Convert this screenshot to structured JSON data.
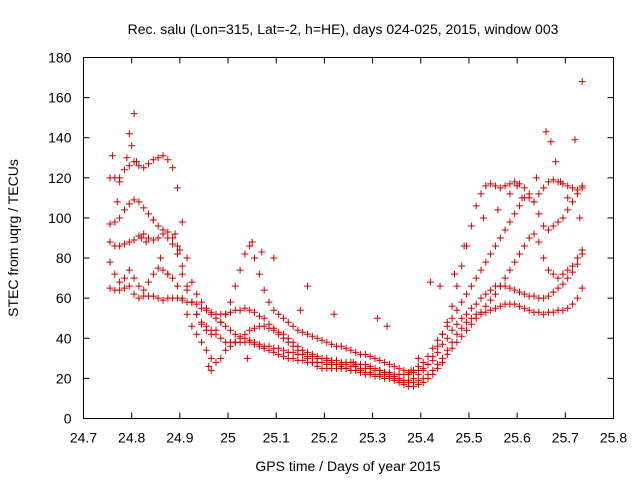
{
  "chart_data": {
    "type": "scatter",
    "title": "Rec. salu (Lon=315, Lat=-2, h=HE), days 024-025, 2015, window 003",
    "xlabel": "GPS time / Days of year 2015",
    "ylabel": "STEC from uqrg / TECUs",
    "xlim": [
      24.7,
      25.8
    ],
    "ylim": [
      0,
      180
    ],
    "xticks": [
      "24.7",
      "24.8",
      "24.9",
      "25",
      "25.1",
      "25.2",
      "25.3",
      "25.4",
      "25.5",
      "25.6",
      "25.7",
      "25.8"
    ],
    "yticks": [
      "0",
      "20",
      "40",
      "60",
      "80",
      "100",
      "120",
      "140",
      "160",
      "180"
    ],
    "grid": false,
    "legend": "none",
    "marker": "+",
    "marker_color": "#cc0000",
    "series": [
      {
        "x": [
          24.755,
          24.765,
          24.775,
          24.785,
          24.795,
          24.805,
          24.815,
          24.825,
          24.835,
          24.845,
          24.855,
          24.865,
          24.875,
          24.885,
          24.895,
          24.905,
          24.915,
          24.925,
          24.935,
          24.945,
          24.955,
          24.965,
          24.975,
          24.985,
          24.995,
          25.005,
          25.015,
          25.025,
          25.035,
          25.045,
          25.055,
          25.065,
          25.075,
          25.085,
          25.095,
          25.105,
          25.115,
          25.125,
          25.135,
          25.145,
          25.155,
          25.165,
          25.175,
          25.185,
          25.195,
          25.205,
          25.215,
          25.225,
          25.235,
          25.245,
          25.255,
          25.265,
          25.275,
          25.285,
          25.295,
          25.305,
          25.315,
          25.325,
          25.335,
          25.345,
          25.355,
          25.365,
          25.375,
          25.385,
          25.395,
          25.405,
          25.415,
          25.425,
          25.435,
          25.445,
          25.455,
          25.465,
          25.475,
          25.485,
          25.495,
          25.505,
          25.515,
          25.525,
          25.535,
          25.545,
          25.555,
          25.565,
          25.575,
          25.585,
          25.595,
          25.605,
          25.615,
          25.625,
          25.635,
          25.645,
          25.655,
          25.665,
          25.675,
          25.685,
          25.695,
          25.705,
          25.715,
          25.725,
          25.735
        ],
        "y": [
          65,
          64,
          64,
          65,
          66,
          62,
          60,
          61,
          61,
          61,
          60,
          59,
          60,
          60,
          60,
          59,
          58,
          58,
          57,
          55,
          54,
          53,
          52,
          52,
          52,
          53,
          54,
          54,
          55,
          54,
          53,
          51,
          50,
          47,
          45,
          42,
          40,
          38,
          36,
          34,
          32,
          30,
          28,
          26,
          25,
          25,
          25,
          25,
          25,
          25,
          24,
          24,
          24,
          23,
          23,
          22,
          22,
          22,
          21,
          20,
          19,
          18,
          18,
          18,
          19,
          20,
          22,
          24,
          27,
          30,
          34,
          38,
          42,
          45,
          48,
          50,
          52,
          52,
          53,
          54,
          55,
          56,
          57,
          57,
          57,
          56,
          55,
          54,
          53,
          53,
          52,
          53,
          53,
          54,
          54,
          55,
          57,
          60,
          65
        ]
      },
      {
        "x": [
          24.755,
          24.765,
          24.775,
          24.785,
          24.795,
          24.805,
          24.815,
          24.825,
          24.835,
          24.845,
          24.855,
          24.865,
          24.875,
          24.885,
          24.895,
          24.905,
          24.915,
          24.925,
          24.935,
          24.945,
          24.955,
          24.965,
          24.975,
          24.985,
          24.995,
          25.005,
          25.015,
          25.025,
          25.035,
          25.045,
          25.055,
          25.065,
          25.075,
          25.085,
          25.095,
          25.105,
          25.115,
          25.125,
          25.135,
          25.145,
          25.155,
          25.165,
          25.175,
          25.185,
          25.195,
          25.205,
          25.215,
          25.225,
          25.235,
          25.245,
          25.255,
          25.265,
          25.275,
          25.285,
          25.295,
          25.305,
          25.315,
          25.325,
          25.335,
          25.345,
          25.355,
          25.365,
          25.375,
          25.385,
          25.395,
          25.405,
          25.415,
          25.425,
          25.435,
          25.445,
          25.455,
          25.465,
          25.475,
          25.485,
          25.495,
          25.505,
          25.515,
          25.525,
          25.535,
          25.545,
          25.555,
          25.565,
          25.575,
          25.585,
          25.595,
          25.605,
          25.615,
          25.625,
          25.635,
          25.645,
          25.655,
          25.665,
          25.675,
          25.685,
          25.695,
          25.705,
          25.715,
          25.725,
          25.735
        ],
        "y": [
          88,
          86,
          86,
          87,
          88,
          89,
          91,
          92,
          90,
          89,
          90,
          92,
          90,
          87,
          82,
          72,
          64,
          58,
          52,
          48,
          46,
          44,
          42,
          40,
          38,
          38,
          38,
          38,
          38,
          38,
          37,
          36,
          35,
          34,
          33,
          32,
          31,
          30,
          30,
          29,
          29,
          28,
          28,
          28,
          28,
          27,
          27,
          27,
          27,
          27,
          26,
          26,
          25,
          25,
          25,
          24,
          24,
          23,
          23,
          22,
          22,
          22,
          22,
          23,
          24,
          25,
          27,
          29,
          33,
          37,
          40,
          44,
          47,
          50,
          52,
          55,
          57,
          60,
          62,
          64,
          66,
          66,
          66,
          65,
          64,
          63,
          62,
          61,
          61,
          60,
          60,
          61,
          63,
          65,
          67,
          70,
          73,
          77,
          82
        ]
      },
      {
        "x": [
          24.755,
          24.765,
          24.775,
          24.785,
          24.795,
          24.805,
          24.815,
          24.825,
          24.835,
          24.845,
          24.855,
          24.865,
          24.875,
          24.885,
          24.895,
          24.905,
          24.915,
          24.925,
          24.935,
          24.945,
          24.955,
          24.965,
          24.975,
          24.985,
          24.995,
          25.005,
          25.015,
          25.025,
          25.035,
          25.045,
          25.055,
          25.065,
          25.075,
          25.085,
          25.095,
          25.105,
          25.115,
          25.125,
          25.135,
          25.145,
          25.155,
          25.165,
          25.175,
          25.185,
          25.195,
          25.205,
          25.215,
          25.225,
          25.235,
          25.245,
          25.255,
          25.265,
          25.275,
          25.285,
          25.295,
          25.305,
          25.315,
          25.325,
          25.335,
          25.345,
          25.355,
          25.365,
          25.375,
          25.385,
          25.395,
          25.405,
          25.415,
          25.425,
          25.435,
          25.445,
          25.455,
          25.465,
          25.475,
          25.485,
          25.495,
          25.505,
          25.515,
          25.525,
          25.535,
          25.545,
          25.555,
          25.565,
          25.575,
          25.585,
          25.595,
          25.605,
          25.615,
          25.625,
          25.635,
          25.645,
          25.655,
          25.665,
          25.675,
          25.685,
          25.695,
          25.705,
          25.715,
          25.725,
          25.735
        ],
        "y": [
          120,
          120,
          118,
          124,
          126,
          128,
          126,
          125,
          127,
          129,
          130,
          131,
          129,
          125,
          115,
          98,
          80,
          68,
          62,
          58,
          55,
          52,
          50,
          48,
          46,
          44,
          42,
          41,
          40,
          39,
          38,
          37,
          36,
          36,
          35,
          35,
          34,
          33,
          33,
          32,
          32,
          31,
          31,
          30,
          30,
          30,
          29,
          29,
          28,
          28,
          28,
          27,
          27,
          27,
          26,
          25,
          24,
          23,
          22,
          21,
          20,
          19,
          19,
          20,
          22,
          24,
          27,
          31,
          36,
          42,
          48,
          56,
          66,
          76,
          86,
          96,
          106,
          112,
          116,
          117,
          116,
          115,
          116,
          117,
          118,
          117,
          115,
          110,
          108,
          112,
          115,
          118,
          119,
          118,
          117,
          116,
          115,
          114,
          115
        ]
      },
      {
        "x": [
          24.755,
          24.765,
          24.775,
          24.785,
          24.795,
          24.805,
          24.815,
          24.825,
          24.835,
          24.845,
          24.855,
          24.865,
          24.875,
          24.885,
          24.895,
          24.905,
          24.915,
          24.925,
          24.935,
          24.945,
          24.955,
          24.965,
          24.975,
          24.985,
          24.995,
          25.005,
          25.015,
          25.025,
          25.035,
          25.045,
          25.055,
          25.065,
          25.075,
          25.085,
          25.095,
          25.105,
          25.115,
          25.125,
          25.135,
          25.145,
          25.155,
          25.165,
          25.175,
          25.185,
          25.195,
          25.205,
          25.215,
          25.225,
          25.235,
          25.245,
          25.255,
          25.265,
          25.275,
          25.285,
          25.295,
          25.305,
          25.315,
          25.325,
          25.335,
          25.345,
          25.355,
          25.365,
          25.375,
          25.385,
          25.395,
          25.405,
          25.415,
          25.425,
          25.435,
          25.445,
          25.455,
          25.465,
          25.475,
          25.485,
          25.495,
          25.505,
          25.515,
          25.525,
          25.535,
          25.545,
          25.555,
          25.565,
          25.575,
          25.585,
          25.595,
          25.605,
          25.615,
          25.625,
          25.635,
          25.645,
          25.655,
          25.665,
          25.675,
          25.685,
          25.695,
          25.705,
          25.715,
          25.725,
          25.735
        ],
        "y": [
          97,
          98,
          100,
          104,
          107,
          109,
          108,
          105,
          102,
          99,
          96,
          94,
          93,
          90,
          86,
          76,
          66,
          58,
          52,
          47,
          44,
          42,
          44,
          48,
          52,
          58,
          66,
          74,
          82,
          86,
          80,
          72,
          64,
          58,
          54,
          52,
          50,
          48,
          46,
          44,
          43,
          42,
          41,
          40,
          39,
          38,
          37,
          36,
          36,
          35,
          34,
          33,
          32,
          32,
          31,
          30,
          29,
          28,
          27,
          26,
          25,
          24,
          23,
          24,
          26,
          28,
          31,
          35,
          39,
          42,
          46,
          50,
          54,
          58,
          62,
          66,
          70,
          74,
          78,
          82,
          86,
          90,
          94,
          98,
          102,
          106,
          110,
          112,
          108,
          102,
          96,
          94,
          96,
          98,
          100,
          104,
          108,
          112,
          116
        ]
      },
      {
        "x": [
          24.755,
          24.765,
          24.775,
          24.785,
          24.795,
          24.805,
          24.815,
          24.825,
          24.835,
          24.845,
          24.855,
          24.865,
          24.875,
          24.885,
          24.895,
          24.905,
          24.915,
          24.925,
          24.935,
          24.945,
          24.955,
          24.965,
          24.975,
          24.985,
          24.995,
          25.005,
          25.015,
          25.025,
          25.035,
          25.045,
          25.055,
          25.065,
          25.075,
          25.085,
          25.095,
          25.105,
          25.115,
          25.125,
          25.135,
          25.145,
          25.155,
          25.165,
          25.175,
          25.185,
          25.195,
          25.205,
          25.215,
          25.225,
          25.235,
          25.245,
          25.255,
          25.265,
          25.275,
          25.285,
          25.295,
          25.305,
          25.315,
          25.325,
          25.335,
          25.345,
          25.355,
          25.365,
          25.375,
          25.385,
          25.395,
          25.405,
          25.415,
          25.425,
          25.435,
          25.445,
          25.455,
          25.465,
          25.475,
          25.485,
          25.495,
          25.505,
          25.515,
          25.525,
          25.535,
          25.545,
          25.555,
          25.565,
          25.575,
          25.585,
          25.595,
          25.605,
          25.615,
          25.625,
          25.635,
          25.645,
          25.655,
          25.665,
          25.675,
          25.685,
          25.695,
          25.705,
          25.715,
          25.725,
          25.735
        ],
        "y": [
          78,
          72,
          68,
          70,
          74,
          70,
          66,
          64,
          68,
          72,
          75,
          74,
          72,
          70,
          66,
          60,
          52,
          46,
          42,
          38,
          34,
          30,
          28,
          30,
          34,
          36,
          38,
          40,
          42,
          44,
          45,
          46,
          46,
          45,
          44,
          43,
          42,
          40,
          38,
          36,
          34,
          33,
          32,
          31,
          30,
          29,
          28,
          27,
          26,
          25,
          24,
          24,
          23,
          22,
          22,
          21,
          21,
          20,
          20,
          19,
          18,
          17,
          16,
          16,
          17,
          18,
          20,
          22,
          25,
          28,
          32,
          35,
          38,
          41,
          44,
          47,
          50,
          53,
          56,
          59,
          62,
          66,
          70,
          74,
          78,
          82,
          86,
          90,
          92,
          88,
          80,
          74,
          72,
          70,
          72,
          74,
          76,
          80,
          84
        ]
      },
      {
        "x": [
          24.76,
          24.77,
          24.775,
          24.79,
          24.795,
          24.8,
          24.805,
          24.81,
          24.82,
          24.83,
          24.845,
          24.86,
          24.875,
          24.89,
          24.9,
          24.96,
          24.965,
          25.04,
          25.05,
          25.07,
          25.095,
          25.15,
          25.165,
          25.22,
          25.26,
          25.275,
          25.31,
          25.33,
          25.38,
          25.395,
          25.42,
          25.44,
          25.47,
          25.49,
          25.53,
          25.56,
          25.585,
          25.6,
          25.61,
          25.64,
          25.66,
          25.67,
          25.68,
          25.69,
          25.705,
          25.72,
          25.73,
          25.735
        ],
        "y": [
          131,
          108,
          120,
          130,
          142,
          136,
          152,
          128,
          90,
          88,
          99,
          80,
          72,
          92,
          84,
          26,
          24,
          30,
          88,
          83,
          80,
          54,
          66,
          52,
          28,
          24,
          50,
          46,
          24,
          30,
          68,
          66,
          72,
          86,
          100,
          104,
          112,
          116,
          110,
          120,
          143,
          138,
          128,
          118,
          110,
          139,
          100,
          168
        ]
      }
    ]
  }
}
